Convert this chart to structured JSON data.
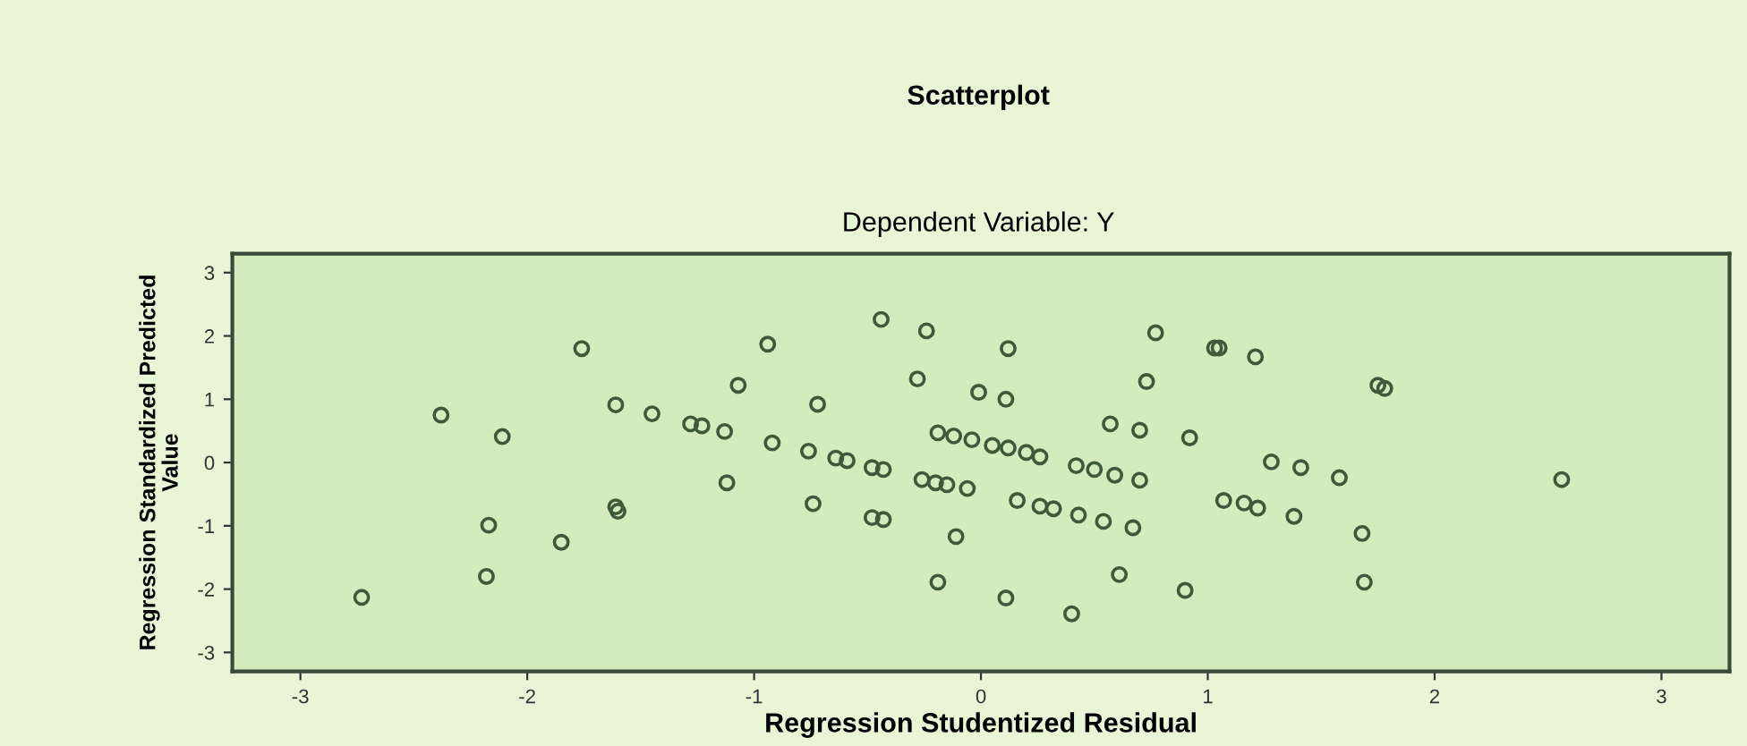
{
  "chart_data": {
    "type": "scatter",
    "title": "Scatterplot",
    "subtitle": "Dependent Variable: Y",
    "xlabel": "Regression Studentized Residual",
    "ylabel": "Regression Standardized Predicted\nValue",
    "xlim": [
      -3.3,
      3.3
    ],
    "ylim": [
      -3.3,
      3.3
    ],
    "xticks": [
      -3,
      -2,
      -1,
      0,
      1,
      2,
      3
    ],
    "yticks": [
      -3,
      -2,
      -1,
      0,
      1,
      2,
      3
    ],
    "grid": false,
    "marker": "circle",
    "series": [
      {
        "color": "#3f5a3a",
        "x": [
          -2.73,
          -2.38,
          -2.11,
          -2.17,
          -2.18,
          -1.85,
          -1.76,
          -1.61,
          -1.61,
          -1.6,
          -1.45,
          -1.28,
          -1.23,
          -1.13,
          -1.07,
          -1.12,
          -0.94,
          -0.92,
          -0.72,
          -0.76,
          -0.74,
          -0.64,
          -0.59,
          -0.48,
          -0.43,
          -0.44,
          -0.24,
          -0.28,
          -0.48,
          -0.43,
          -0.26,
          -0.2,
          -0.15,
          -0.06,
          -0.19,
          -0.12,
          -0.04,
          -0.01,
          0.11,
          0.12,
          0.05,
          0.12,
          0.2,
          0.26,
          -0.11,
          -0.19,
          0.11,
          0.4,
          0.16,
          0.26,
          0.32,
          0.43,
          0.54,
          0.67,
          0.42,
          0.5,
          0.59,
          0.7,
          0.57,
          0.7,
          0.73,
          0.77,
          0.92,
          0.61,
          0.9,
          1.03,
          1.05,
          1.21,
          1.75,
          1.78,
          1.28,
          1.41,
          1.58,
          2.56,
          1.07,
          1.16,
          1.22,
          1.38,
          1.68,
          1.69
        ],
        "values": [
          -2.13,
          0.75,
          0.41,
          -0.99,
          -1.8,
          -1.26,
          1.8,
          0.91,
          -0.7,
          -0.77,
          0.77,
          0.61,
          0.58,
          0.49,
          1.22,
          -0.32,
          1.87,
          0.31,
          0.92,
          0.18,
          -0.65,
          0.07,
          0.03,
          -0.08,
          -0.11,
          2.26,
          2.08,
          1.32,
          -0.87,
          -0.9,
          -0.27,
          -0.32,
          -0.35,
          -0.41,
          0.47,
          0.42,
          0.36,
          1.11,
          1.0,
          1.8,
          0.27,
          0.23,
          0.16,
          0.09,
          -1.17,
          -1.89,
          -2.14,
          -2.39,
          -0.6,
          -0.69,
          -0.73,
          -0.83,
          -0.93,
          -1.03,
          -0.05,
          -0.11,
          -0.2,
          -0.28,
          0.61,
          0.51,
          1.28,
          2.05,
          0.39,
          -1.77,
          -2.02,
          1.81,
          1.81,
          1.67,
          1.22,
          1.17,
          0.01,
          -0.08,
          -0.24,
          -0.27,
          -0.6,
          -0.64,
          -0.72,
          -0.85,
          -1.12,
          -1.89
        ]
      }
    ]
  }
}
